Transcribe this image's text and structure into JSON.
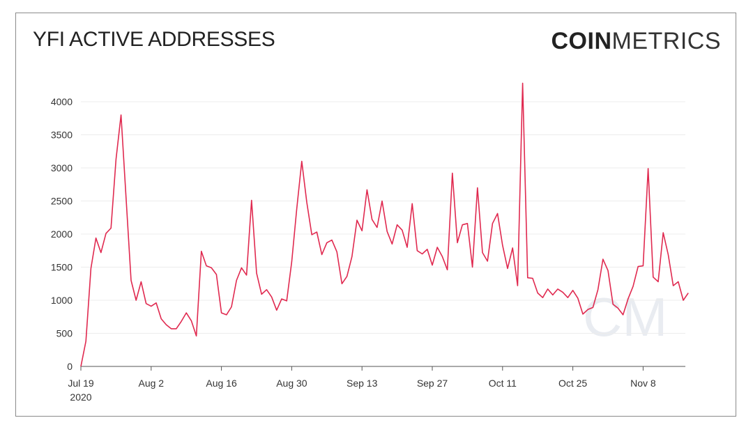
{
  "header": {
    "title": "YFI ACTIVE ADDRESSES",
    "brand_bold": "COIN",
    "brand_light": "METRICS"
  },
  "watermark": "CM",
  "colors": {
    "line": "#e0294f",
    "grid": "#ececec",
    "axis": "#555555",
    "text": "#333333"
  },
  "chart_data": {
    "type": "line",
    "title": "YFI ACTIVE ADDRESSES",
    "xlabel": "",
    "ylabel": "",
    "ylim": [
      0,
      4000
    ],
    "yticks": [
      0,
      500,
      1000,
      1500,
      2000,
      2500,
      3000,
      3500,
      4000
    ],
    "grid": true,
    "x_start": "2020-07-19",
    "xtick_labels": [
      "Jul 19",
      "Aug 2",
      "Aug 16",
      "Aug 30",
      "Sep 13",
      "Sep 27",
      "Oct 11",
      "Oct 25",
      "Nov 8"
    ],
    "xtick_sublabel": "2020",
    "series": [
      {
        "values": [
          0,
          380,
          1480,
          1940,
          1720,
          2010,
          2090,
          3130,
          3800,
          2550,
          1300,
          1000,
          1280,
          950,
          910,
          960,
          720,
          630,
          570,
          570,
          680,
          810,
          690,
          460,
          1740,
          1520,
          1490,
          1390,
          810,
          780,
          900,
          1300,
          1490,
          1380,
          2510,
          1410,
          1090,
          1160,
          1050,
          850,
          1020,
          990,
          1580,
          2380,
          3100,
          2480,
          1990,
          2030,
          1690,
          1870,
          1910,
          1730,
          1250,
          1360,
          1660,
          2210,
          2050,
          2670,
          2220,
          2100,
          2500,
          2040,
          1850,
          2140,
          2060,
          1800,
          2460,
          1750,
          1700,
          1770,
          1530,
          1800,
          1660,
          1460,
          2920,
          1870,
          2140,
          2160,
          1500,
          2700,
          1720,
          1590,
          2160,
          2310,
          1830,
          1480,
          1790,
          1220,
          4280,
          1340,
          1330,
          1110,
          1040,
          1170,
          1080,
          1170,
          1120,
          1040,
          1150,
          1030,
          790,
          860,
          890,
          1160,
          1620,
          1450,
          940,
          880,
          780,
          1020,
          1210,
          1510,
          1520,
          2990,
          1350,
          1280,
          2020,
          1690,
          1220,
          1280,
          1000,
          1110
        ]
      }
    ]
  }
}
